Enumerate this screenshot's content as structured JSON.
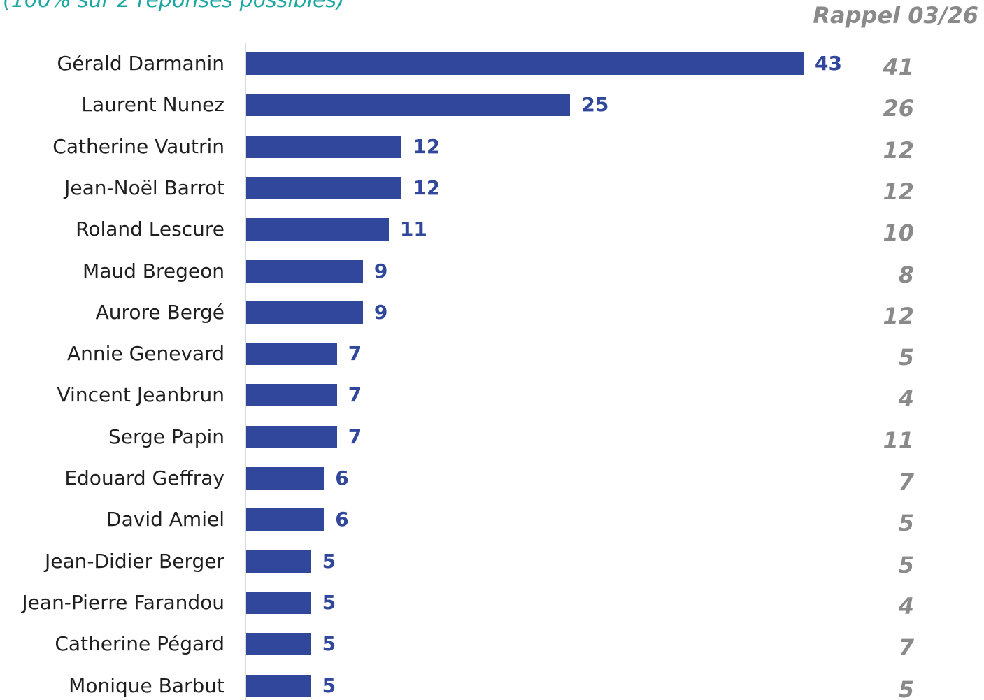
{
  "chart_data": {
    "type": "bar",
    "orientation": "horizontal",
    "subtitle": "(100% sur 2 réponses possibles)",
    "comparison_header": "Rappel 03/26",
    "categories": [
      "Gérald Darmanin",
      "Laurent Nunez",
      "Catherine Vautrin",
      "Jean-Noël Barrot",
      "Roland Lescure",
      "Maud Bregeon",
      "Aurore Bergé",
      "Annie Genevard",
      "Vincent Jeanbrun",
      "Serge Papin",
      "Edouard Geffray",
      "David Amiel",
      "Jean-Didier Berger",
      "Jean-Pierre Farandou",
      "Catherine Pégard",
      "Monique Barbut"
    ],
    "values": [
      43,
      25,
      12,
      12,
      11,
      9,
      9,
      7,
      7,
      7,
      6,
      6,
      5,
      5,
      5,
      5
    ],
    "rappel": [
      41,
      26,
      12,
      12,
      10,
      8,
      12,
      5,
      4,
      11,
      7,
      5,
      5,
      4,
      7,
      5
    ],
    "xlim": [
      0,
      43
    ],
    "grid": false,
    "colors": {
      "bar": "#30479b",
      "value_label": "#30479b",
      "rappel": "#8a8a8a",
      "subtitle": "#1aa7a1",
      "axis": "#d9d9d9"
    }
  }
}
